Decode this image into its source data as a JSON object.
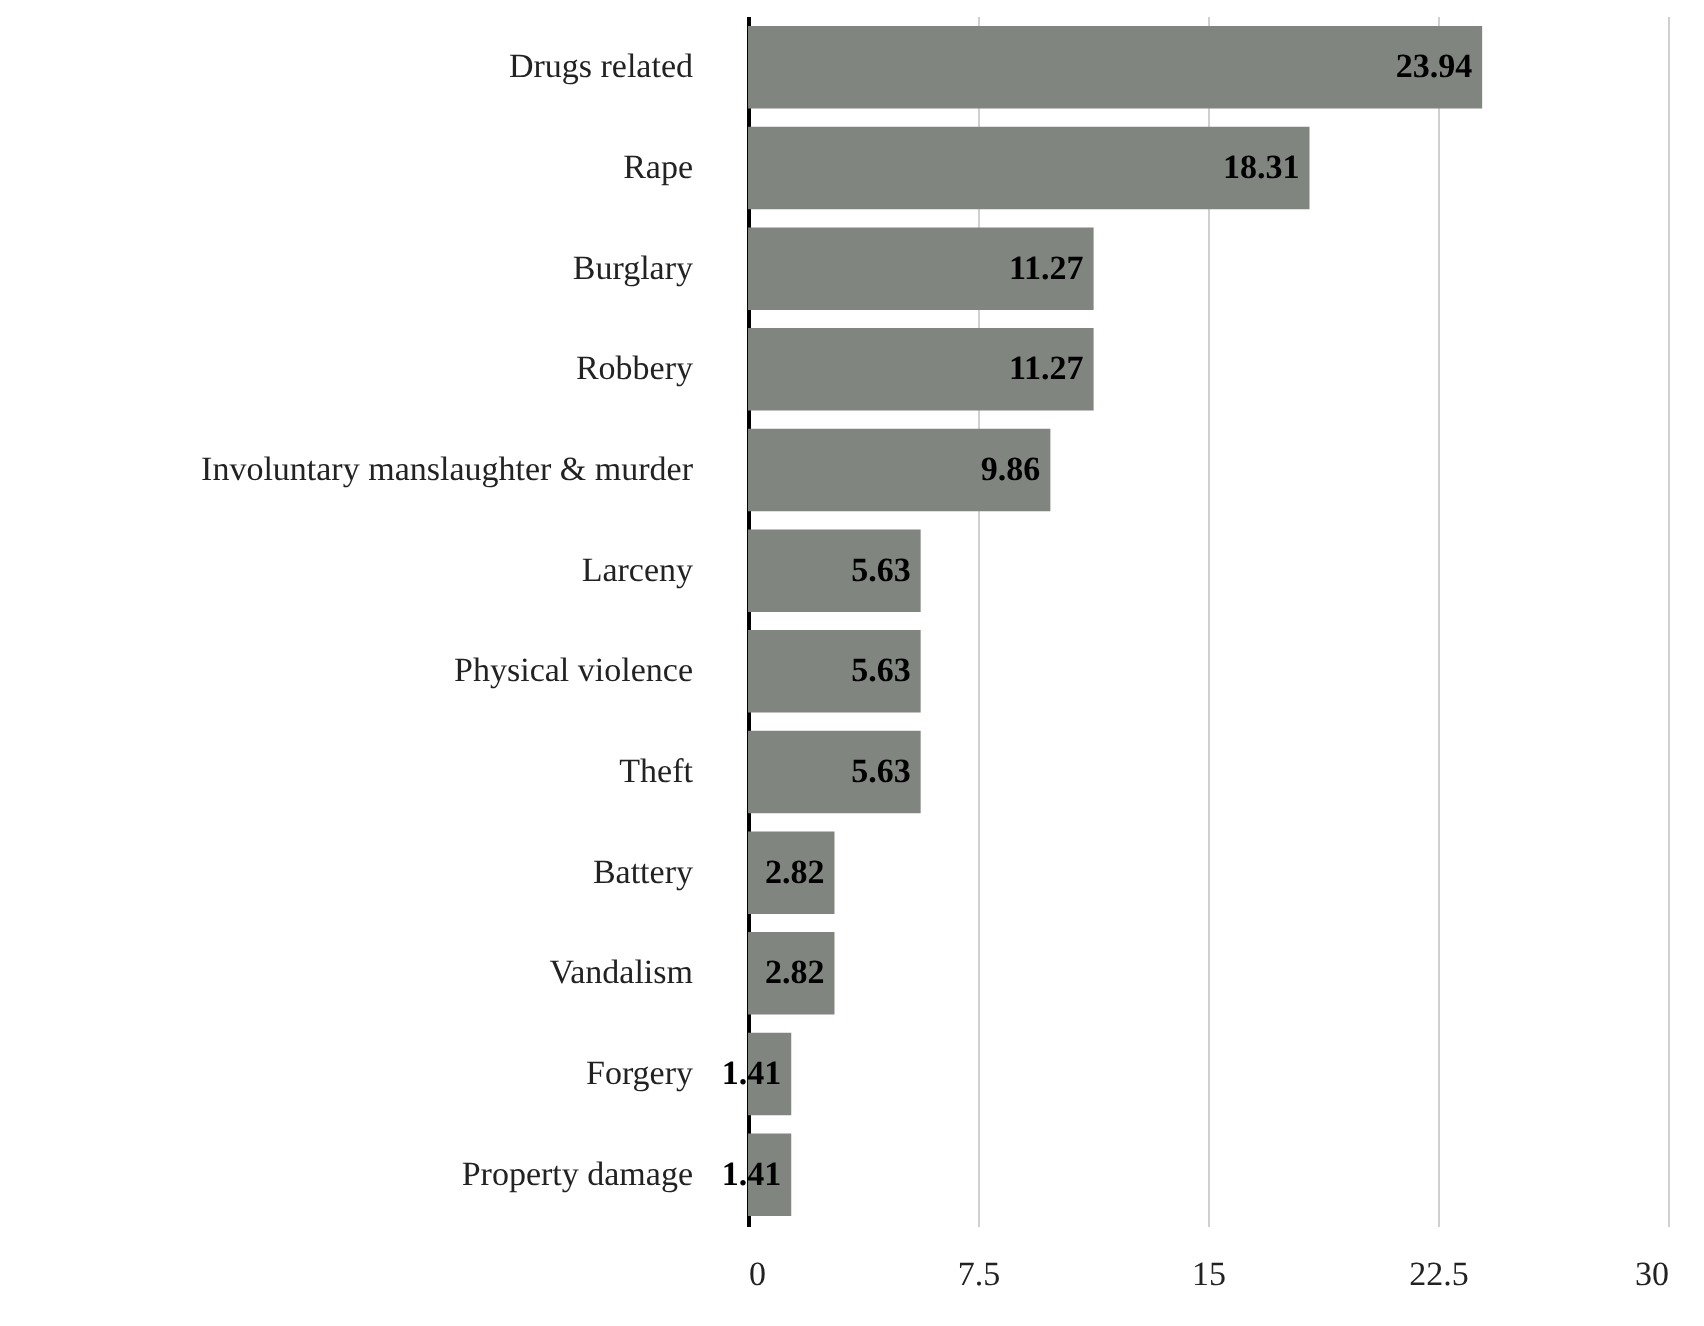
{
  "chart_data": {
    "type": "bar",
    "orientation": "horizontal",
    "categories": [
      "Drugs related",
      "Rape",
      "Burglary",
      "Robbery",
      "Involuntary manslaughter & murder",
      "Larceny",
      "Physical violence",
      "Theft",
      "Battery",
      "Vandalism",
      "Forgery",
      "Property damage"
    ],
    "values": [
      23.94,
      18.31,
      11.27,
      11.27,
      9.86,
      5.63,
      5.63,
      5.63,
      2.82,
      2.82,
      1.41,
      1.41
    ],
    "color": "#808580",
    "xlim": [
      0,
      30
    ],
    "xticks": [
      0,
      7.5,
      15,
      22.5,
      30
    ],
    "grid": "x",
    "data_labels": true
  }
}
